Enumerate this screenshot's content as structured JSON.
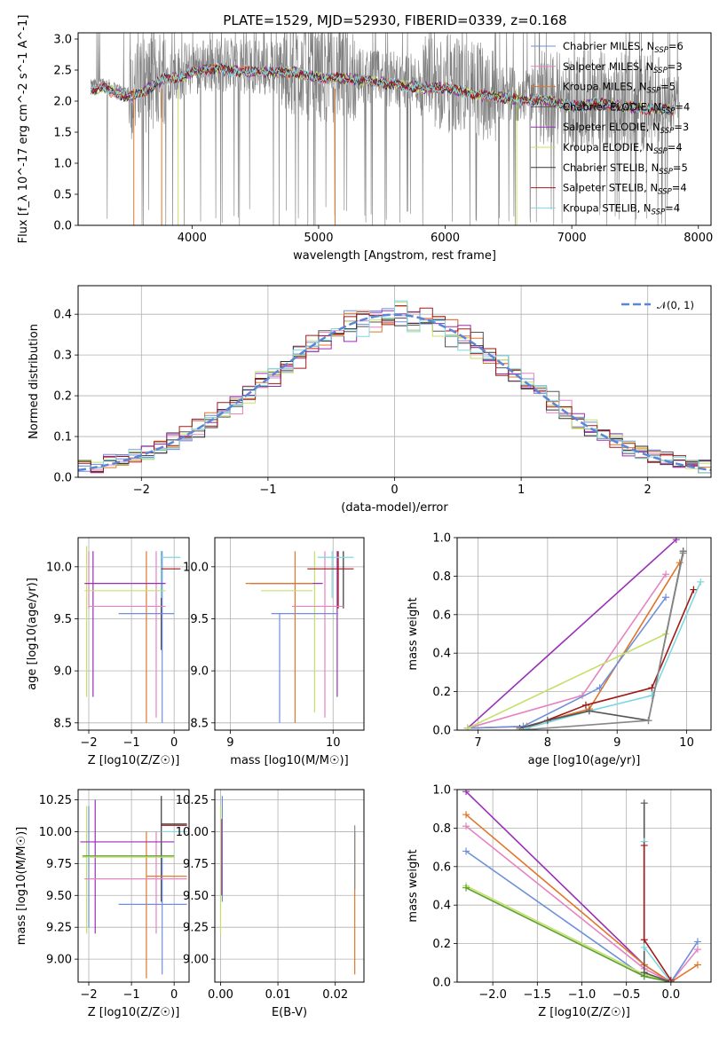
{
  "title": "PLATE=1529, MJD=52930, FIBERID=0339, z=0.168",
  "legend": [
    {
      "name": "Chabrier MILES, N",
      "sub": "SSP",
      "tail": "=6",
      "color": "#6f8fdb"
    },
    {
      "name": "Salpeter MILES, N",
      "sub": "SSP",
      "tail": "=3",
      "color": "#e584c0"
    },
    {
      "name": "Kroupa MILES, N",
      "sub": "SSP",
      "tail": "=5",
      "color": "#e0762a"
    },
    {
      "name": "Chabrier ELODIE, N",
      "sub": "SSP",
      "tail": "=4",
      "color": "#555555"
    },
    {
      "name": "Salpeter ELODIE, N",
      "sub": "SSP",
      "tail": "=3",
      "color": "#9a2fb6"
    },
    {
      "name": "Kroupa ELODIE, N",
      "sub": "SSP",
      "tail": "=4",
      "color": "#c5e06a"
    },
    {
      "name": "Chabrier STELIB, N",
      "sub": "SSP",
      "tail": "=5",
      "color": "#333333"
    },
    {
      "name": "Salpeter STELIB, N",
      "sub": "SSP",
      "tail": "=4",
      "color": "#a11a1a"
    },
    {
      "name": "Kroupa STELIB, N",
      "sub": "SSP",
      "tail": "=4",
      "color": "#7fd8e0"
    }
  ],
  "chart_data": [
    {
      "id": "spectrum",
      "type": "line",
      "xlabel": "wavelength [Angstrom, rest frame]",
      "ylabel": "Flux [f_λ 10^-17 erg cm^-2 s^-1 A^-1]",
      "xlim": [
        3100,
        8100
      ],
      "ylim": [
        0,
        3.1
      ],
      "xticks": [
        4000,
        5000,
        6000,
        7000,
        8000
      ],
      "yticks": [
        0.0,
        0.5,
        1.0,
        1.5,
        2.0,
        2.5,
        3.0
      ],
      "grid": false,
      "legend_position": "right",
      "continuum": [
        [
          3200,
          2.25
        ],
        [
          3300,
          2.3
        ],
        [
          3400,
          2.2
        ],
        [
          3500,
          2.15
        ],
        [
          3600,
          2.2
        ],
        [
          3700,
          2.35
        ],
        [
          3800,
          2.45
        ],
        [
          3900,
          2.45
        ],
        [
          4000,
          2.55
        ],
        [
          4200,
          2.6
        ],
        [
          4400,
          2.55
        ],
        [
          4600,
          2.55
        ],
        [
          4800,
          2.55
        ],
        [
          5000,
          2.45
        ],
        [
          5200,
          2.45
        ],
        [
          5400,
          2.4
        ],
        [
          5600,
          2.35
        ],
        [
          5800,
          2.3
        ],
        [
          6000,
          2.3
        ],
        [
          6200,
          2.2
        ],
        [
          6400,
          2.15
        ],
        [
          6600,
          2.1
        ],
        [
          6800,
          2.1
        ],
        [
          7000,
          2.0
        ],
        [
          7200,
          2.05
        ],
        [
          7400,
          2.0
        ],
        [
          7600,
          1.95
        ],
        [
          7800,
          1.95
        ]
      ]
    },
    {
      "id": "residuals",
      "type": "line",
      "xlabel": "(data-model)/error",
      "ylabel": "Normed distribution",
      "xlim": [
        -2.5,
        2.5
      ],
      "ylim": [
        0,
        0.47
      ],
      "xticks": [
        -2,
        -1,
        0,
        1,
        2
      ],
      "yticks": [
        0.0,
        0.1,
        0.2,
        0.3,
        0.4
      ],
      "grid": true,
      "legend_position": "top-right",
      "reference_label": "𝒩(0, 1)",
      "reference_color": "#5b86d6",
      "bin_width": 0.1
    },
    {
      "id": "z-age",
      "type": "scatter",
      "xlabel": "Z [log10(Z/Z☉)]",
      "ylabel": "age [log10(age/yr)]",
      "xlim": [
        -2.25,
        0.35
      ],
      "ylim": [
        8.43,
        10.28
      ],
      "xticks": [
        -2,
        -1,
        0
      ],
      "yticks": [
        8.5,
        9.0,
        9.5,
        10.0
      ],
      "grid": true,
      "points": [
        {
          "x": 0.0,
          "y": 9.55,
          "x_err": [
            1.3,
            0.0
          ],
          "y_err": [
            0.0,
            0.0
          ],
          "color": "#6f8fdb",
          "series": 0
        },
        {
          "x": -0.2,
          "y": 9.62,
          "x_err": [
            1.8,
            0.0
          ],
          "y_err": [
            0.0,
            0.0
          ],
          "color": "#e584c0",
          "series": 1
        },
        {
          "x": -0.2,
          "y": 9.77,
          "x_err": [
            1.9,
            0.0
          ],
          "y_err": [
            0.0,
            0.0
          ],
          "color": "#c5e06a",
          "series": 5
        },
        {
          "x": -0.2,
          "y": 9.84,
          "x_err": [
            1.9,
            0.0
          ],
          "y_err": [
            0.0,
            0.0
          ],
          "color": "#9a2fb6",
          "series": 4
        },
        {
          "x": 0.15,
          "y": 9.98,
          "x_err": [
            0.45,
            0.0
          ],
          "y_err": [
            0.0,
            0.0
          ],
          "color": "#a11a1a",
          "series": 7
        },
        {
          "x": 0.15,
          "y": 10.09,
          "x_err": [
            0.45,
            0.0
          ],
          "y_err": [
            0.0,
            0.0
          ],
          "color": "#7fd8e0",
          "series": 8
        }
      ],
      "vlines": [
        {
          "x": -2.05,
          "y": [
            8.75,
            10.2
          ],
          "color": "#c5e06a"
        },
        {
          "x": -2.0,
          "y": [
            9.6,
            10.15
          ],
          "color": "#e584c0"
        },
        {
          "x": -1.9,
          "y": [
            8.75,
            10.15
          ],
          "color": "#9a2fb6"
        },
        {
          "x": -0.65,
          "y": [
            8.5,
            10.15
          ],
          "color": "#e0762a"
        },
        {
          "x": -0.42,
          "y": [
            8.55,
            10.15
          ],
          "color": "#e584c0"
        },
        {
          "x": -0.3,
          "y": [
            9.2,
            10.15
          ],
          "color": "#333333"
        },
        {
          "x": -0.28,
          "y": [
            8.5,
            10.15
          ],
          "color": "#6f8fdb"
        },
        {
          "x": -0.3,
          "y": [
            9.7,
            10.15
          ],
          "color": "#7fd8e0"
        }
      ]
    },
    {
      "id": "mass-age",
      "type": "scatter",
      "xlabel": "mass [log10(M/M☉)]",
      "ylabel": "",
      "xlim": [
        8.85,
        10.3
      ],
      "ylim": [
        8.43,
        10.28
      ],
      "xticks": [
        9,
        10
      ],
      "yticks": [
        8.5,
        9.0,
        9.5,
        10.0
      ],
      "grid": true,
      "points": [
        {
          "x": 9.4,
          "y": 9.55,
          "x_err": [
            0.0,
            0.65
          ],
          "color": "#6f8fdb"
        },
        {
          "x": 9.6,
          "y": 9.62,
          "x_err": [
            0.0,
            0.5
          ],
          "color": "#e584c0"
        },
        {
          "x": 9.8,
          "y": 9.77,
          "x_err": [
            0.5,
            0.0
          ],
          "color": "#c5e06a"
        },
        {
          "x": 9.9,
          "y": 9.84,
          "x_err": [
            0.7,
            0.0
          ],
          "color": "#9a2fb6"
        },
        {
          "x": 9.8,
          "y": 9.84,
          "x_err": [
            0.65,
            0.0
          ],
          "color": "#e0762a"
        },
        {
          "x": 10.05,
          "y": 9.98,
          "x_err": [
            0.3,
            0.15
          ],
          "color": "#a11a1a"
        },
        {
          "x": 10.05,
          "y": 10.09,
          "x_err": [
            0.2,
            0.15
          ],
          "color": "#7fd8e0"
        }
      ],
      "vlines": [
        {
          "x": 9.48,
          "y": [
            8.5,
            9.55
          ],
          "color": "#6f8fdb"
        },
        {
          "x": 9.63,
          "y": [
            8.5,
            10.15
          ],
          "color": "#e0762a"
        },
        {
          "x": 9.82,
          "y": [
            8.6,
            10.15
          ],
          "color": "#c5e06a"
        },
        {
          "x": 9.92,
          "y": [
            8.55,
            10.15
          ],
          "color": "#e584c0"
        },
        {
          "x": 9.99,
          "y": [
            9.7,
            10.15
          ],
          "color": "#7fd8e0"
        },
        {
          "x": 10.05,
          "y": [
            9.6,
            10.15
          ],
          "color": "#a11a1a"
        },
        {
          "x": 10.1,
          "y": [
            9.6,
            10.15
          ],
          "color": "#333333"
        },
        {
          "x": 10.04,
          "y": [
            8.75,
            10.15
          ],
          "color": "#9a2fb6"
        }
      ]
    },
    {
      "id": "age-weight",
      "type": "line",
      "xlabel": "age [log10(age/yr)]",
      "ylabel": "mass weight",
      "xlim": [
        6.7,
        10.35
      ],
      "ylim": [
        0,
        1.0
      ],
      "xticks": [
        7,
        8,
        9,
        10
      ],
      "yticks": [
        0.0,
        0.2,
        0.4,
        0.6,
        0.8,
        1.0
      ],
      "grid": true,
      "series": [
        {
          "color": "#9a2fb6",
          "points": [
            [
              6.85,
              0.01
            ],
            [
              9.85,
              0.99
            ]
          ]
        },
        {
          "color": "#e0762a",
          "points": [
            [
              6.85,
              0.01
            ],
            [
              7.7,
              0.02
            ],
            [
              8.6,
              0.11
            ],
            [
              9.9,
              0.87
            ]
          ]
        },
        {
          "color": "#e584c0",
          "points": [
            [
              6.85,
              0.01
            ],
            [
              8.5,
              0.18
            ],
            [
              9.7,
              0.81
            ]
          ]
        },
        {
          "color": "#6f8fdb",
          "points": [
            [
              6.85,
              0.01
            ],
            [
              7.65,
              0.02
            ],
            [
              8.75,
              0.22
            ],
            [
              9.7,
              0.69
            ]
          ]
        },
        {
          "color": "#c5e06a",
          "points": [
            [
              6.85,
              0.01
            ],
            [
              9.7,
              0.5
            ]
          ]
        },
        {
          "color": "#a11a1a",
          "points": [
            [
              7.7,
              0.01
            ],
            [
              8.55,
              0.13
            ],
            [
              9.5,
              0.22
            ],
            [
              10.1,
              0.73
            ]
          ]
        },
        {
          "color": "#7fd8e0",
          "points": [
            [
              7.7,
              0.01
            ],
            [
              8.6,
              0.1
            ],
            [
              9.5,
              0.18
            ],
            [
              10.2,
              0.77
            ]
          ]
        },
        {
          "color": "#555555",
          "points": [
            [
              7.6,
              0.01
            ],
            [
              8.0,
              0.05
            ],
            [
              8.6,
              0.1
            ],
            [
              9.45,
              0.05
            ],
            [
              9.95,
              0.93
            ]
          ]
        },
        {
          "color": "#888888",
          "points": [
            [
              7.6,
              0.0
            ],
            [
              9.45,
              0.05
            ],
            [
              9.95,
              0.92
            ]
          ]
        }
      ]
    },
    {
      "id": "z-mass",
      "type": "scatter",
      "xlabel": "Z [log10(Z/Z☉)]",
      "ylabel": "mass [log10(M/M☉)]",
      "xlim": [
        -2.25,
        0.35
      ],
      "ylim": [
        8.82,
        10.33
      ],
      "xticks": [
        -2,
        -1,
        0
      ],
      "yticks": [
        9.0,
        9.25,
        9.5,
        9.75,
        10.0,
        10.25
      ],
      "grid": true,
      "points": [
        {
          "x": 0.0,
          "y": 9.43,
          "x_err": [
            1.3,
            0.3
          ],
          "color": "#6f8fdb"
        },
        {
          "x": 0.0,
          "y": 9.63,
          "x_err": [
            2.1,
            0.3
          ],
          "color": "#e584c0"
        },
        {
          "x": -0.3,
          "y": 9.65,
          "x_err": [
            0.35,
            0.6
          ],
          "color": "#e0762a"
        },
        {
          "x": -0.3,
          "y": 9.8,
          "x_err": [
            1.85,
            0.3
          ],
          "color": "#c5e06a"
        },
        {
          "x": -0.3,
          "y": 9.81,
          "x_err": [
            1.85,
            0.3
          ],
          "color": "#5aa02c"
        },
        {
          "x": -0.3,
          "y": 9.92,
          "x_err": [
            1.9,
            0.3
          ],
          "color": "#9a2fb6"
        },
        {
          "x": 0.1,
          "y": 10.0,
          "x_err": [
            0.4,
            0.2
          ],
          "color": "#7fd8e0"
        },
        {
          "x": 0.1,
          "y": 10.05,
          "x_err": [
            0.4,
            0.2
          ],
          "color": "#a11a1a"
        },
        {
          "x": 0.1,
          "y": 10.06,
          "x_err": [
            0.4,
            0.2
          ],
          "color": "#333333"
        }
      ],
      "vlines": [
        {
          "x": -2.05,
          "y": [
            9.2,
            10.2
          ],
          "color": "#c5e06a"
        },
        {
          "x": -2.0,
          "y": [
            9.25,
            10.2
          ],
          "color": "#6f8fdb"
        },
        {
          "x": -1.85,
          "y": [
            9.2,
            10.25
          ],
          "color": "#9a2fb6"
        },
        {
          "x": -0.65,
          "y": [
            8.85,
            10.0
          ],
          "color": "#e0762a"
        },
        {
          "x": -0.42,
          "y": [
            9.2,
            10.0
          ],
          "color": "#e584c0"
        },
        {
          "x": -0.3,
          "y": [
            9.45,
            10.28
          ],
          "color": "#333333"
        },
        {
          "x": -0.28,
          "y": [
            8.88,
            9.8
          ],
          "color": "#6f8fdb"
        }
      ]
    },
    {
      "id": "ebv-mass",
      "type": "scatter",
      "xlabel": "E(B-V)",
      "ylabel": "",
      "xlim": [
        -0.001,
        0.025
      ],
      "ylim": [
        8.82,
        10.33
      ],
      "xticks": [
        0.0,
        0.01,
        0.02
      ],
      "yticks": [
        9.0,
        9.25,
        9.5,
        9.75,
        10.0,
        10.25
      ],
      "grid": true,
      "vlines": [
        {
          "x": 0.0,
          "y": [
            9.2,
            10.2
          ],
          "color": "#c5e06a"
        },
        {
          "x": 0.0003,
          "y": [
            9.45,
            10.28
          ],
          "color": "#6f8fdb"
        },
        {
          "x": 0.0002,
          "y": [
            9.5,
            10.1
          ],
          "color": "#9a2fb6"
        },
        {
          "x": 0.0234,
          "y": [
            8.88,
            10.0
          ],
          "color": "#e0762a"
        },
        {
          "x": 0.0234,
          "y": [
            9.55,
            10.05
          ],
          "color": "#888888"
        }
      ]
    },
    {
      "id": "z-weight",
      "type": "line",
      "xlabel": "Z [log10(Z/Z☉)]",
      "ylabel": "mass weight",
      "xlim": [
        -2.4,
        0.45
      ],
      "ylim": [
        0,
        1.0
      ],
      "xticks": [
        -2.0,
        -1.5,
        -1.0,
        -0.5,
        0.0
      ],
      "yticks": [
        0.0,
        0.2,
        0.4,
        0.6,
        0.8,
        1.0
      ],
      "grid": true,
      "series": [
        {
          "color": "#9a2fb6",
          "points": [
            [
              -2.3,
              0.99
            ],
            [
              -0.3,
              0.09
            ],
            [
              0.0,
              0.0
            ]
          ]
        },
        {
          "color": "#e0762a",
          "points": [
            [
              -2.3,
              0.87
            ],
            [
              -0.3,
              0.09
            ],
            [
              0.0,
              0.0
            ],
            [
              0.3,
              0.09
            ]
          ]
        },
        {
          "color": "#e584c0",
          "points": [
            [
              -2.3,
              0.81
            ],
            [
              -0.3,
              0.07
            ],
            [
              0.0,
              0.0
            ],
            [
              0.3,
              0.17
            ]
          ]
        },
        {
          "color": "#6f8fdb",
          "points": [
            [
              -2.3,
              0.68
            ],
            [
              -0.3,
              0.03
            ],
            [
              0.0,
              0.0
            ],
            [
              0.3,
              0.21
            ]
          ]
        },
        {
          "color": "#c5e06a",
          "points": [
            [
              -2.3,
              0.5
            ],
            [
              -0.3,
              0.04
            ],
            [
              0.0,
              0.0
            ]
          ]
        },
        {
          "color": "#5aa02c",
          "points": [
            [
              -2.3,
              0.49
            ],
            [
              -0.3,
              0.03
            ],
            [
              0.0,
              0.0
            ]
          ]
        },
        {
          "color": "#555555",
          "points": [
            [
              -0.3,
              0.93
            ],
            [
              -0.3,
              0.05
            ],
            [
              0.0,
              0.0
            ]
          ]
        },
        {
          "color": "#7fd8e0",
          "points": [
            [
              -0.3,
              0.73
            ],
            [
              -0.3,
              0.18
            ],
            [
              0.0,
              0.0
            ]
          ]
        },
        {
          "color": "#a11a1a",
          "points": [
            [
              -0.3,
              0.71
            ],
            [
              -0.3,
              0.22
            ],
            [
              0.0,
              0.01
            ]
          ]
        }
      ]
    }
  ]
}
